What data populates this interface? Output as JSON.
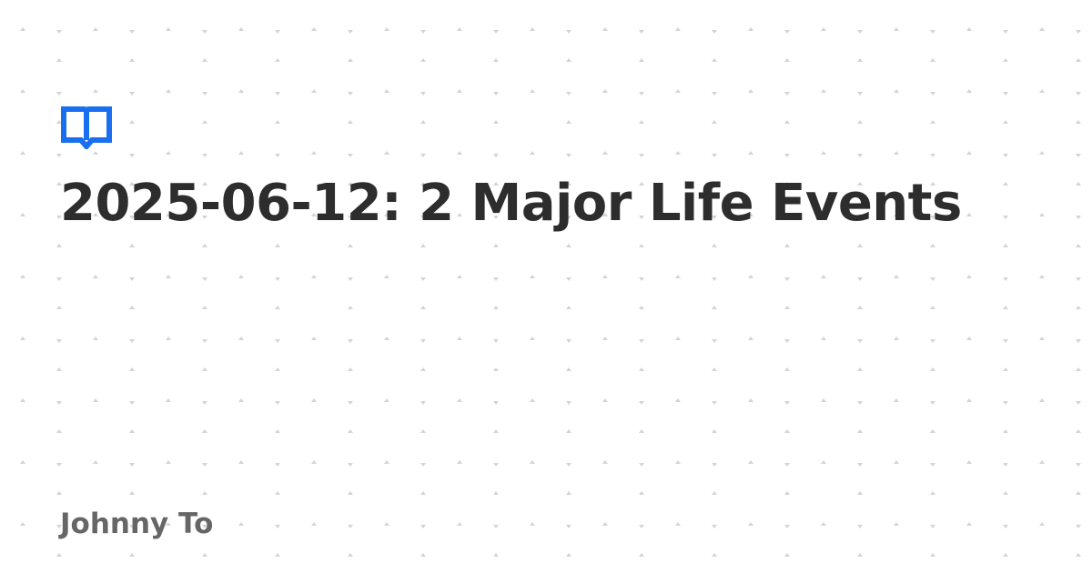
{
  "card": {
    "title": "2025-06-12: 2 Major Life Events",
    "author": "Johnny To",
    "logo_icon": "open-book-icon"
  },
  "colors": {
    "background": "#ffffff",
    "title": "#2d2d2d",
    "author": "#666666",
    "logo": "#1a6ff0",
    "pattern": "#d6d6d6"
  }
}
